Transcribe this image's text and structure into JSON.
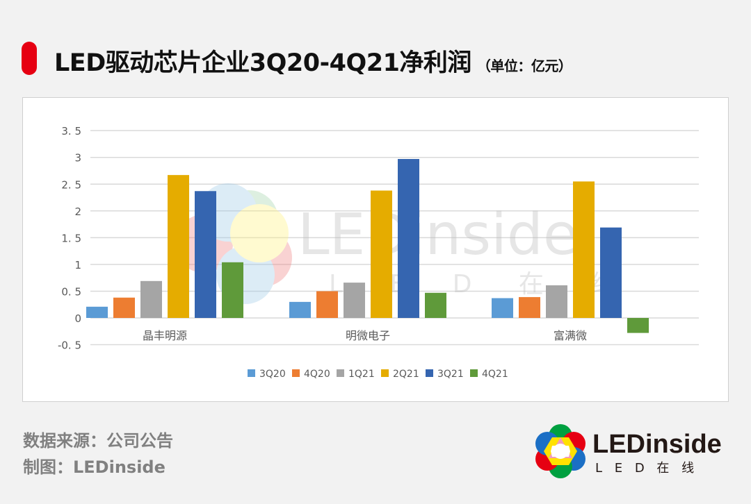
{
  "header": {
    "title": "LED驱动芯片企业3Q20-4Q21净利润",
    "unit": "（单位：亿元）",
    "accent_color": "#e60012"
  },
  "footer": {
    "source": "数据来源：公司公告",
    "maker": "制图：LEDinside"
  },
  "logo": {
    "brand": "LEDinside",
    "subtitle": "L E D 在 线"
  },
  "watermark": {
    "text": "LEDinside",
    "subtitle": "L E D 在 线"
  },
  "chart_data": {
    "type": "bar",
    "title": "LED驱动芯片企业3Q20-4Q21净利润（单位：亿元）",
    "xlabel": "",
    "ylabel": "亿元",
    "ylim": [
      -0.5,
      3.5
    ],
    "yticks": [
      "-0.5",
      "0",
      "0.5",
      "1",
      "1.5",
      "2",
      "2.5",
      "3",
      "3.5"
    ],
    "grid": true,
    "legend_position": "bottom",
    "categories": [
      "晶丰明源",
      "明微电子",
      "富满微"
    ],
    "series": [
      {
        "name": "3Q20",
        "color": "#5b9bd5",
        "values": [
          0.21,
          0.3,
          0.37
        ]
      },
      {
        "name": "4Q20",
        "color": "#ed7d31",
        "values": [
          0.38,
          0.5,
          0.39
        ]
      },
      {
        "name": "1Q21",
        "color": "#a5a5a5",
        "values": [
          0.69,
          0.66,
          0.61
        ]
      },
      {
        "name": "2Q21",
        "color": "#e5ac00",
        "values": [
          2.67,
          2.38,
          2.55
        ]
      },
      {
        "name": "3Q21",
        "color": "#3565b0",
        "values": [
          2.37,
          2.97,
          1.69
        ]
      },
      {
        "name": "4Q21",
        "color": "#5f9a3a",
        "values": [
          1.04,
          0.47,
          -0.28
        ]
      }
    ]
  }
}
